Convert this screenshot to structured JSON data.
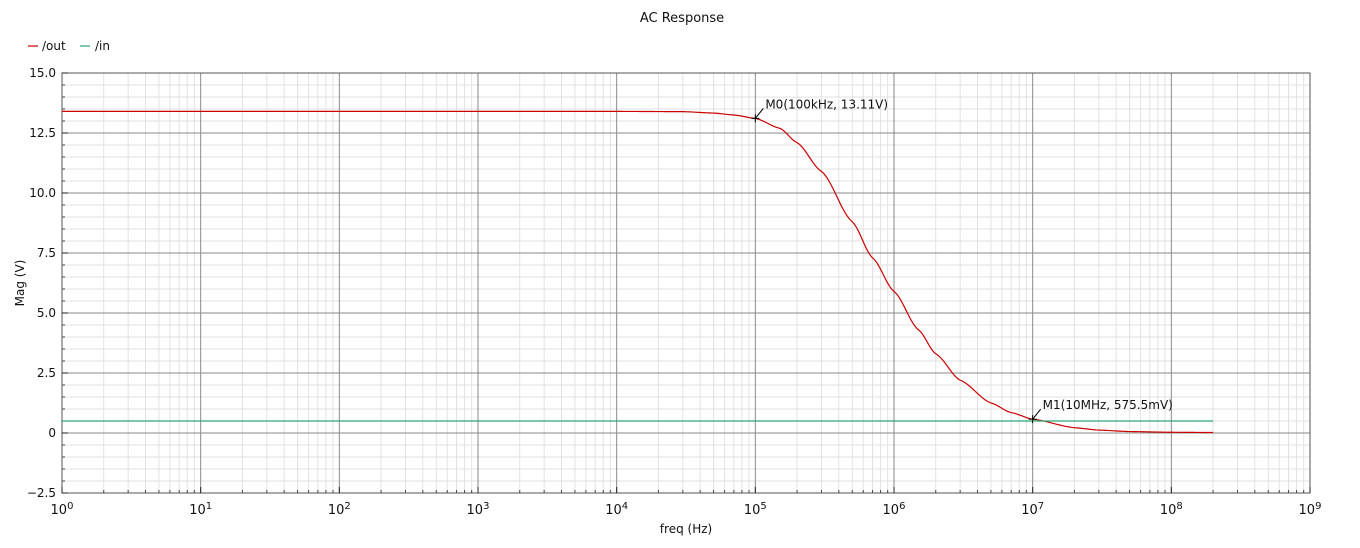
{
  "chart_data": {
    "type": "line",
    "title": "AC Response",
    "xlabel": "freq (Hz)",
    "ylabel": "Mag (V)",
    "x_scale": "log",
    "xlim": [
      1,
      1000000000
    ],
    "ylim": [
      -2.5,
      15.0
    ],
    "grid": true,
    "legend_position": "top-left",
    "x_ticks": [
      {
        "base": "10",
        "exp": "0"
      },
      {
        "base": "10",
        "exp": "1"
      },
      {
        "base": "10",
        "exp": "2"
      },
      {
        "base": "10",
        "exp": "3"
      },
      {
        "base": "10",
        "exp": "4"
      },
      {
        "base": "10",
        "exp": "5"
      },
      {
        "base": "10",
        "exp": "6"
      },
      {
        "base": "10",
        "exp": "7"
      },
      {
        "base": "10",
        "exp": "8"
      },
      {
        "base": "10",
        "exp": "9"
      }
    ],
    "y_ticks": [
      "15.0",
      "12.5",
      "10.0",
      "7.5",
      "5.0",
      "2.5",
      "0",
      "−2.5"
    ],
    "series": [
      {
        "name": "/out",
        "color": "#cc0000",
        "x": [
          1,
          10,
          100,
          1000,
          10000,
          30000,
          50000,
          70000,
          100000,
          150000,
          200000,
          300000,
          500000,
          700000,
          1000000,
          1500000,
          2000000,
          3000000,
          5000000,
          7000000,
          10000000,
          20000000,
          30000000,
          50000000,
          100000000,
          200000000
        ],
        "y": [
          13.4,
          13.4,
          13.4,
          13.4,
          13.4,
          13.39,
          13.33,
          13.25,
          13.11,
          12.7,
          12.1,
          10.9,
          8.8,
          7.3,
          5.9,
          4.3,
          3.3,
          2.2,
          1.25,
          0.85,
          0.5755,
          0.22,
          0.12,
          0.06,
          0.03,
          0.02
        ]
      },
      {
        "name": "/in",
        "color": "#2aa876",
        "x": [
          1,
          200000000
        ],
        "y": [
          0.5,
          0.5
        ]
      }
    ],
    "markers": [
      {
        "label": "M0(100kHz, 13.11V)",
        "x": 100000,
        "y": 13.11
      },
      {
        "label": "M1(10MHz, 575.5mV)",
        "x": 10000000,
        "y": 0.5755
      }
    ]
  }
}
